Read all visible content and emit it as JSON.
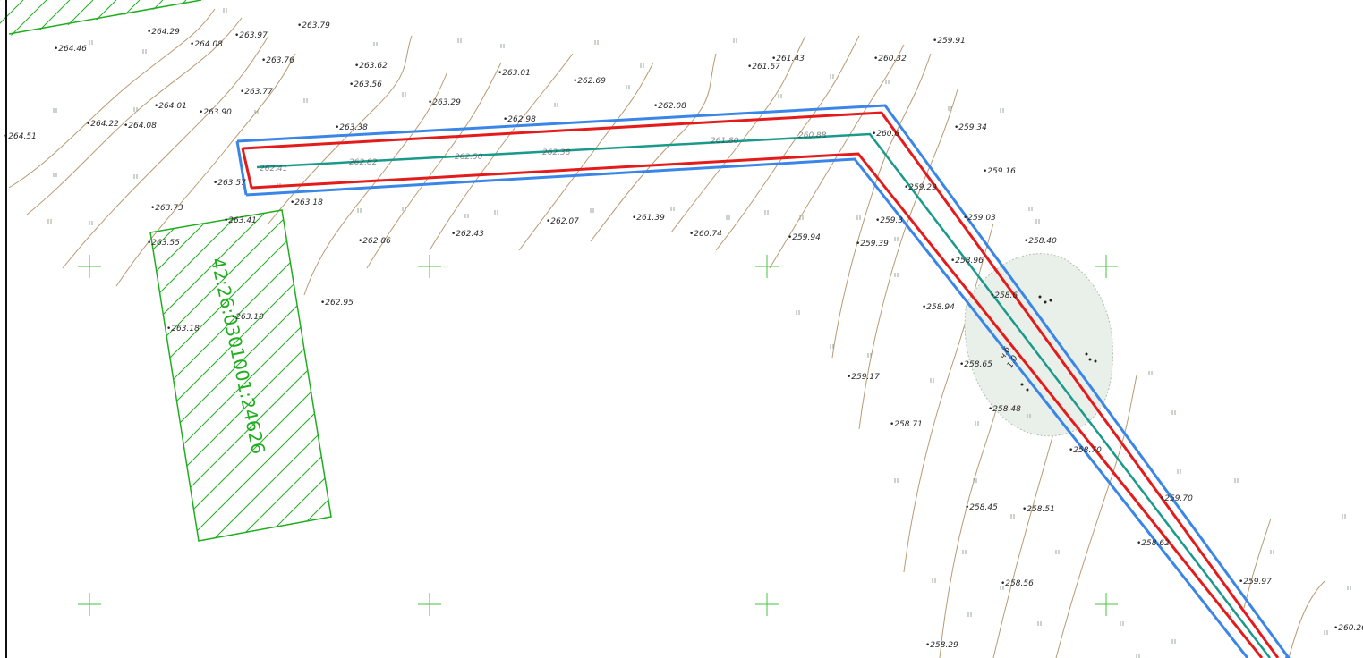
{
  "colors": {
    "contour": "#b89a72",
    "boundary": "#3a86e8",
    "offset": "#e41b1b",
    "centerline": "#1a9a8a",
    "parcel": "#1fae1f",
    "grass": "#9aa79a",
    "wetland": "#e9efe9"
  },
  "parcel": {
    "cadastral_number": "42:26:0301001:24626"
  },
  "elevations": [
    "264.29",
    "263.97",
    "263.79",
    "264.08",
    "264.46",
    "263.76",
    "263.62",
    "263.56",
    "263.01",
    "262.69",
    "261.67",
    "261.43",
    "260.32",
    "259.91",
    "263.77",
    "263.29",
    "262.98",
    "262.08",
    "264.01",
    "263.90",
    "264.22",
    "264.08",
    "264.51",
    "263.38",
    "260.6",
    "259.34",
    "259.16",
    "263.57",
    "263.18",
    "259.29",
    "263.73",
    "263.41",
    "262.07",
    "261.39",
    "260.74",
    "259.3",
    "259.03",
    "258.40",
    "263.55",
    "262.86",
    "262.43",
    "259.94",
    "259.39",
    "258.96",
    "262.95",
    "258.6",
    "258.94",
    "263.18",
    "263.10",
    "258.65",
    "259.17",
    "258.48",
    "258.71",
    "258.70",
    "259.70",
    "258.45",
    "258.51",
    "258.62",
    "258.56",
    "259.97",
    "260.26",
    "258.29"
  ],
  "corridor_labels": [
    "262.41",
    "262.82",
    "262.50",
    "262.38",
    "261.80",
    "260.88"
  ],
  "note_label": "ч.б\n1.0"
}
